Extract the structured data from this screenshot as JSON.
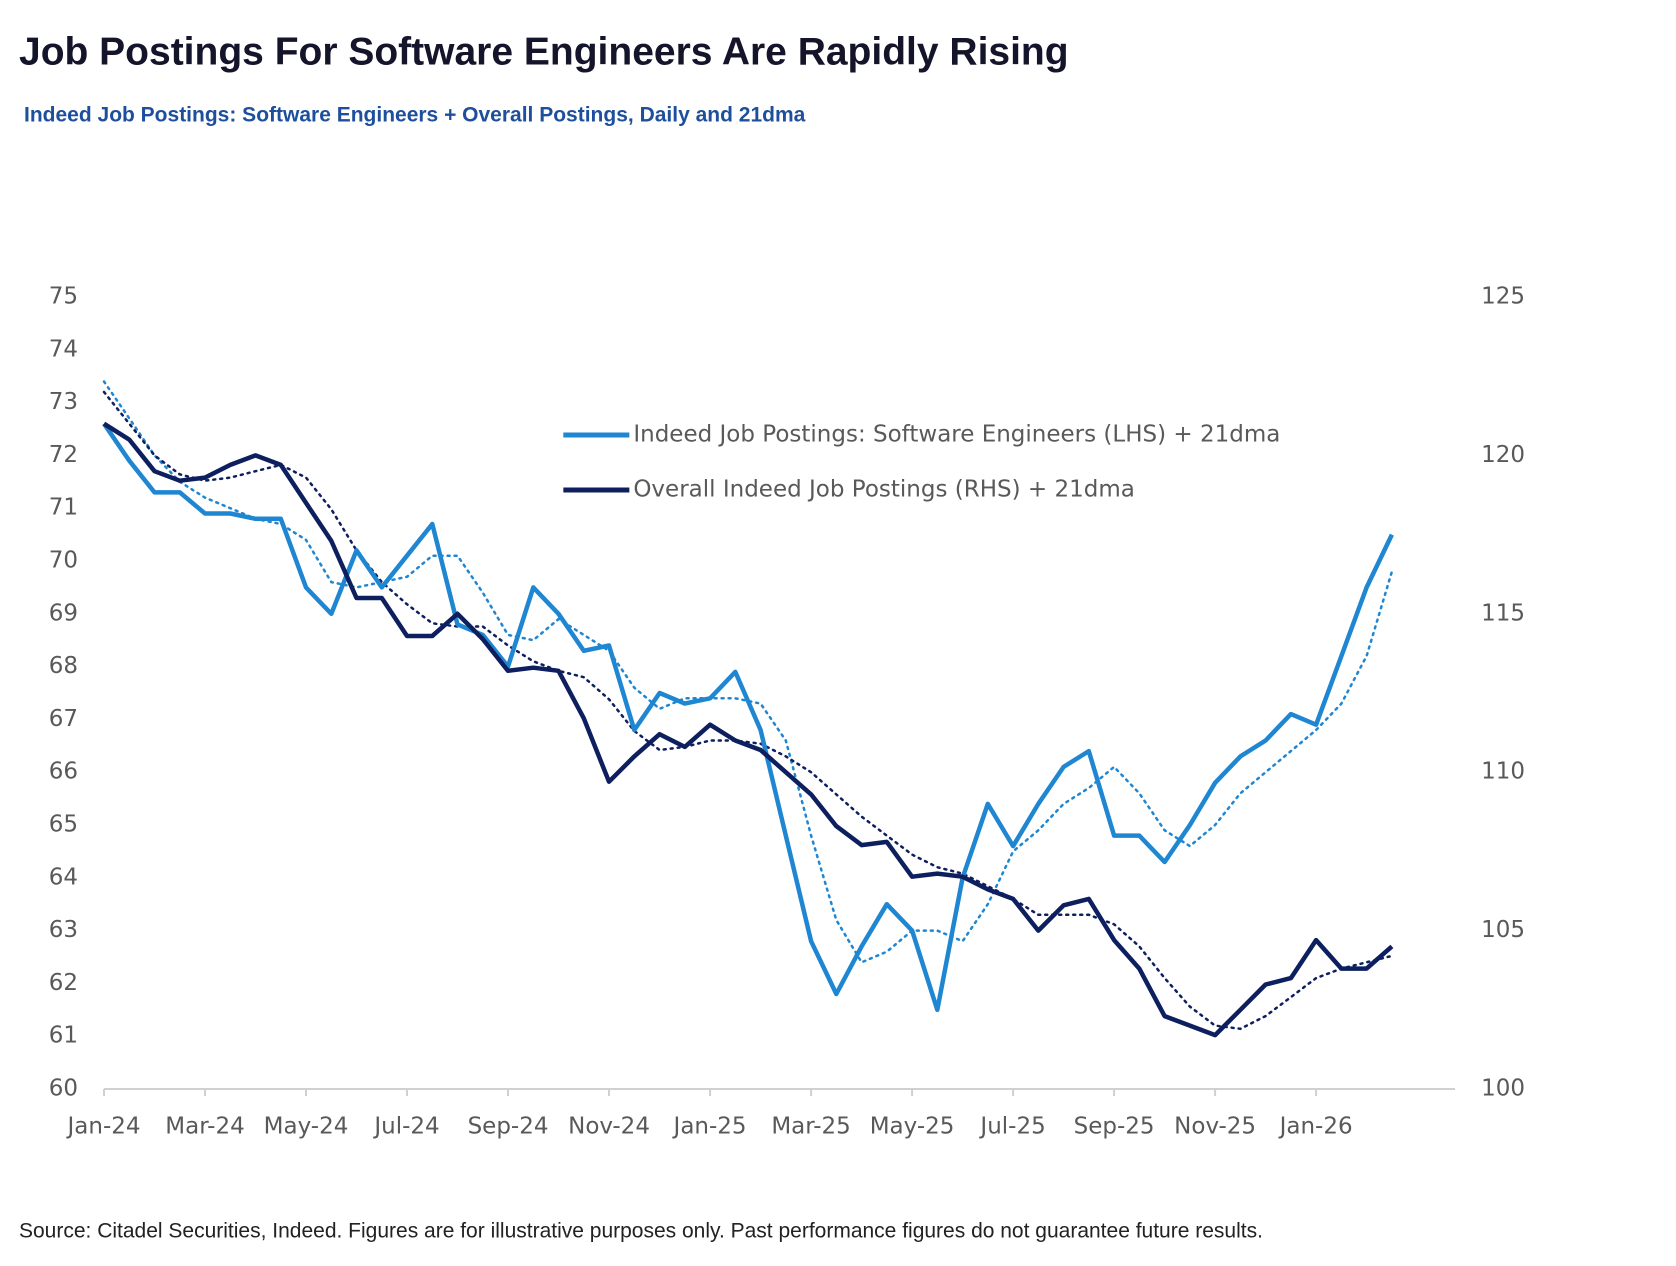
{
  "chart_data": {
    "type": "line",
    "title": "Job Postings For Software Engineers Are Rapidly Rising",
    "subtitle": "Indeed Job Postings: Software Engineers + Overall Postings, Daily and 21dma",
    "source": "Source: Citadel Securities, Indeed. Figures are for illustrative purposes only. Past performance figures do not guarantee future results.",
    "categories": [
      "Jan-24",
      null,
      null,
      null,
      "Mar-24",
      null,
      null,
      null,
      "May-24",
      null,
      null,
      null,
      "Jul-24",
      null,
      null,
      null,
      "Sep-24",
      null,
      null,
      null,
      "Nov-24",
      null,
      null,
      null,
      "Jan-25",
      null,
      null,
      null,
      "Mar-25",
      null,
      null,
      null,
      "May-25",
      null,
      null,
      null,
      "Jul-25",
      null,
      null,
      null,
      "Sep-25",
      null,
      null,
      null,
      "Nov-25",
      null,
      null,
      null,
      "Jan-26",
      null,
      null,
      null
    ],
    "series": [
      {
        "name": "Indeed Job Postings: Software Engineers (LHS) + 21dma",
        "color": "#1f86d2",
        "axis": "y",
        "values": [
          72.6,
          71.9,
          71.3,
          71.3,
          70.9,
          70.9,
          70.8,
          70.8,
          69.5,
          69.0,
          70.2,
          69.5,
          70.1,
          70.7,
          68.8,
          68.6,
          68.0,
          69.5,
          69.0,
          68.3,
          68.4,
          66.8,
          67.5,
          67.3,
          67.4,
          67.9,
          66.8,
          64.8,
          62.8,
          61.8,
          62.7,
          63.5,
          63.0,
          61.5,
          64.0,
          65.4,
          64.6,
          65.4,
          66.1,
          66.4,
          64.8,
          64.8,
          64.3,
          65.0,
          65.8,
          66.3,
          66.6,
          67.1,
          66.9,
          68.2,
          69.5,
          70.5
        ],
        "moving_average": [
          73.4,
          72.7,
          72.0,
          71.5,
          71.2,
          71.0,
          70.8,
          70.7,
          70.4,
          69.6,
          69.5,
          69.6,
          69.7,
          70.1,
          70.1,
          69.4,
          68.6,
          68.5,
          68.9,
          68.6,
          68.3,
          67.6,
          67.2,
          67.4,
          67.4,
          67.4,
          67.3,
          66.6,
          64.8,
          63.2,
          62.4,
          62.6,
          63.0,
          63.0,
          62.8,
          63.5,
          64.5,
          64.9,
          65.4,
          65.7,
          66.1,
          65.6,
          64.9,
          64.6,
          65.0,
          65.6,
          66.0,
          66.4,
          66.8,
          67.3,
          68.2,
          69.8
        ]
      },
      {
        "name": "Overall Indeed Job Postings (RHS) + 21dma",
        "color": "#0d1f5e",
        "axis": "y2",
        "values": [
          121.0,
          120.5,
          119.5,
          119.2,
          119.3,
          119.7,
          120.0,
          119.7,
          118.5,
          117.3,
          115.5,
          115.5,
          114.3,
          114.3,
          115.0,
          114.2,
          113.2,
          113.3,
          113.2,
          111.7,
          109.7,
          110.5,
          111.2,
          110.8,
          111.5,
          111.0,
          110.7,
          110.0,
          109.3,
          108.3,
          107.7,
          107.8,
          106.7,
          106.8,
          106.7,
          106.3,
          106.0,
          105.0,
          105.8,
          106.0,
          104.7,
          103.8,
          102.3,
          102.0,
          101.7,
          102.5,
          103.3,
          103.5,
          104.7,
          103.8,
          103.8,
          104.5
        ],
        "moving_average": [
          122.0,
          121.0,
          120.0,
          119.4,
          119.2,
          119.3,
          119.5,
          119.7,
          119.3,
          118.3,
          117.0,
          116.0,
          115.3,
          114.7,
          114.6,
          114.6,
          114.0,
          113.5,
          113.2,
          113.0,
          112.3,
          111.3,
          110.7,
          110.8,
          111.0,
          111.0,
          110.9,
          110.5,
          110.0,
          109.3,
          108.6,
          108.0,
          107.4,
          107.0,
          106.8,
          106.4,
          106.0,
          105.5,
          105.5,
          105.5,
          105.2,
          104.5,
          103.5,
          102.6,
          102.0,
          101.9,
          102.3,
          102.9,
          103.5,
          103.8,
          104.0,
          104.2
        ]
      }
    ],
    "ylim": [
      60,
      75
    ],
    "yticks": [
      60,
      61,
      62,
      63,
      64,
      65,
      66,
      67,
      68,
      69,
      70,
      71,
      72,
      73,
      74,
      75
    ],
    "y2lim": [
      100,
      125
    ],
    "y2ticks": [
      100,
      105,
      110,
      115,
      120,
      125
    ],
    "grid": false,
    "legend": "upper center"
  }
}
